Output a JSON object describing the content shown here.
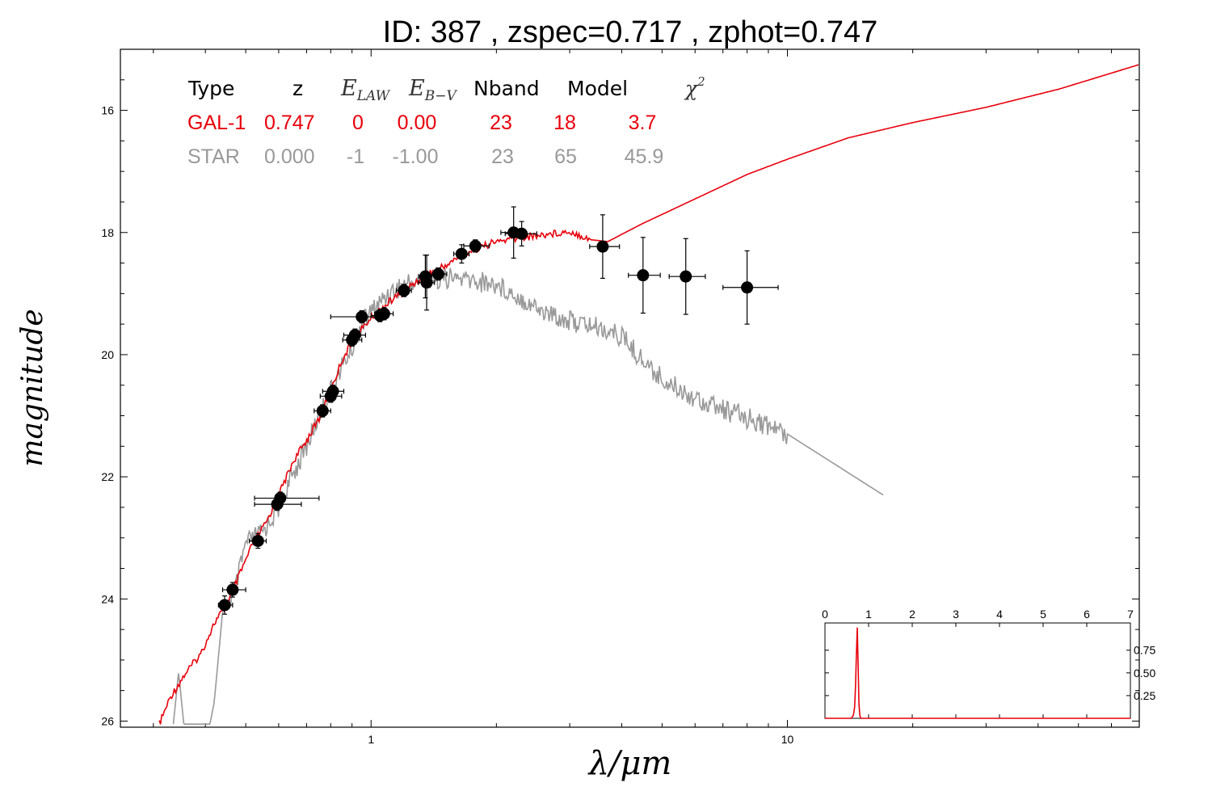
{
  "chart_data": [
    {
      "type": "scatter",
      "title": "ID:  387   , zspec=0.717 , zphot=0.747",
      "xlabel": "λ/μm",
      "ylabel": "magnitude",
      "xscale": "log",
      "xlim": [
        0.25,
        70
      ],
      "ylim": [
        26.1,
        15.0
      ],
      "y_inverted": true,
      "x_ticks": [
        {
          "value": 1,
          "label": "1"
        },
        {
          "value": 10,
          "label": "10"
        }
      ],
      "y_ticks": [
        {
          "value": 16,
          "label": "16"
        },
        {
          "value": 18,
          "label": "18"
        },
        {
          "value": 20,
          "label": "20"
        },
        {
          "value": 22,
          "label": "22"
        },
        {
          "value": 24,
          "label": "24"
        },
        {
          "value": 26,
          "label": "26"
        }
      ],
      "colors": {
        "galaxy": "#e8000b",
        "star": "#999999",
        "points": "#000000"
      },
      "fit_table": {
        "headers": [
          "Type",
          "z",
          "E_LAW",
          "E_B-V",
          "Nband",
          "Model",
          "χ²"
        ],
        "rows": [
          {
            "type": "GAL-1",
            "z": "0.747",
            "elaw": "0",
            "ebv": "0.00",
            "nband": "23",
            "model": "18",
            "chi2": "3.7",
            "color": "#e8000b"
          },
          {
            "type": "STAR",
            "z": "0.000",
            "elaw": "-1",
            "ebv": "-1.00",
            "nband": "23",
            "model": "65",
            "chi2": "45.9",
            "color": "#999999"
          }
        ]
      },
      "points": [
        {
          "x": 0.445,
          "y": 24.1,
          "xerr": [
            0.43,
            0.465
          ],
          "yerr": 0.15
        },
        {
          "x": 0.465,
          "y": 23.85,
          "xerr": [
            0.44,
            0.5
          ],
          "yerr": 0.12
        },
        {
          "x": 0.535,
          "y": 23.05,
          "xerr": [
            0.51,
            0.56
          ],
          "yerr": 0.12
        },
        {
          "x": 0.595,
          "y": 22.45,
          "xerr": [
            0.525,
            0.68
          ],
          "yerr": 0.1
        },
        {
          "x": 0.605,
          "y": 22.35,
          "xerr": [
            0.525,
            0.75
          ],
          "yerr": 0.1
        },
        {
          "x": 0.765,
          "y": 20.92,
          "xerr": [
            0.73,
            0.8
          ],
          "yerr": 0.1
        },
        {
          "x": 0.8,
          "y": 20.68,
          "xerr": [
            0.755,
            0.85
          ],
          "yerr": 0.1
        },
        {
          "x": 0.81,
          "y": 20.6,
          "xerr": [
            0.765,
            0.86
          ],
          "yerr": 0.1
        },
        {
          "x": 0.9,
          "y": 19.76,
          "xerr": [
            0.855,
            0.95
          ],
          "yerr": 0.1
        },
        {
          "x": 0.915,
          "y": 19.68,
          "xerr": [
            0.86,
            0.97
          ],
          "yerr": 0.1
        },
        {
          "x": 0.95,
          "y": 19.38,
          "xerr": [
            0.8,
            1.08
          ],
          "yerr": 0.1
        },
        {
          "x": 1.05,
          "y": 19.36,
          "xerr": [
            1.0,
            1.1
          ],
          "yerr": 0.1
        },
        {
          "x": 1.075,
          "y": 19.33,
          "xerr": [
            1.02,
            1.13
          ],
          "yerr": 0.1
        },
        {
          "x": 1.2,
          "y": 18.95,
          "xerr": [
            1.15,
            1.25
          ],
          "yerr": 0.1
        },
        {
          "x": 1.35,
          "y": 18.72,
          "xerr": [
            1.3,
            1.4
          ],
          "yerr": 0.35
        },
        {
          "x": 1.36,
          "y": 18.82,
          "xerr": [
            1.3,
            1.42
          ],
          "yerr": 0.45
        },
        {
          "x": 1.45,
          "y": 18.68,
          "xerr": [
            1.38,
            1.52
          ],
          "yerr": 0.1
        },
        {
          "x": 1.65,
          "y": 18.35,
          "xerr": [
            1.58,
            1.72
          ],
          "yerr": 0.15
        },
        {
          "x": 1.78,
          "y": 18.22,
          "xerr": [
            1.67,
            1.92
          ],
          "yerr": 0.1
        },
        {
          "x": 2.2,
          "y": 18.0,
          "xerr": [
            2.05,
            2.32
          ],
          "yerr": 0.42
        },
        {
          "x": 2.3,
          "y": 18.02,
          "xerr": [
            2.1,
            2.5
          ],
          "yerr": 0.2
        },
        {
          "x": 3.6,
          "y": 18.23,
          "xerr": [
            3.35,
            3.95
          ],
          "yerr": 0.52
        },
        {
          "x": 4.5,
          "y": 18.7,
          "xerr": [
            4.15,
            4.95
          ],
          "yerr": 0.62
        },
        {
          "x": 5.7,
          "y": 18.72,
          "xerr": [
            5.2,
            6.35
          ],
          "yerr": 0.62
        },
        {
          "x": 8.0,
          "y": 18.9,
          "xerr": [
            7.0,
            9.5
          ],
          "yerr": 0.6
        }
      ],
      "galaxy_model": [
        [
          0.31,
          26.05
        ],
        [
          0.33,
          25.6
        ],
        [
          0.36,
          25.2
        ],
        [
          0.39,
          24.9
        ],
        [
          0.42,
          24.4
        ],
        [
          0.45,
          24.1
        ],
        [
          0.48,
          23.65
        ],
        [
          0.52,
          23.1
        ],
        [
          0.56,
          22.75
        ],
        [
          0.6,
          22.3
        ],
        [
          0.65,
          21.75
        ],
        [
          0.7,
          21.4
        ],
        [
          0.75,
          21.05
        ],
        [
          0.8,
          20.6
        ],
        [
          0.85,
          20.1
        ],
        [
          0.9,
          19.8
        ],
        [
          0.95,
          19.58
        ],
        [
          1.0,
          19.4
        ],
        [
          1.1,
          19.15
        ],
        [
          1.2,
          18.95
        ],
        [
          1.35,
          18.7
        ],
        [
          1.5,
          18.55
        ],
        [
          1.7,
          18.32
        ],
        [
          2.0,
          18.15
        ],
        [
          2.5,
          18.05
        ],
        [
          3.0,
          17.98
        ],
        [
          3.4,
          18.12
        ],
        [
          3.7,
          18.15
        ],
        [
          4.5,
          17.85
        ],
        [
          6.0,
          17.45
        ],
        [
          8.0,
          17.05
        ],
        [
          10.0,
          16.8
        ],
        [
          14.0,
          16.45
        ],
        [
          20.0,
          16.2
        ],
        [
          30.0,
          15.95
        ],
        [
          45.0,
          15.65
        ],
        [
          70.0,
          15.25
        ]
      ],
      "star_model": [
        [
          0.335,
          26.05
        ],
        [
          0.345,
          25.2
        ],
        [
          0.355,
          26.05
        ],
        [
          0.38,
          26.05
        ],
        [
          0.41,
          26.05
        ],
        [
          0.42,
          25.7
        ],
        [
          0.44,
          24.2
        ],
        [
          0.47,
          23.9
        ],
        [
          0.5,
          23.1
        ],
        [
          0.55,
          22.9
        ],
        [
          0.6,
          22.5
        ],
        [
          0.65,
          21.95
        ],
        [
          0.7,
          21.5
        ],
        [
          0.75,
          21.0
        ],
        [
          0.8,
          20.6
        ],
        [
          0.85,
          20.2
        ],
        [
          0.9,
          19.9
        ],
        [
          0.95,
          19.5
        ],
        [
          1.0,
          19.3
        ],
        [
          1.1,
          19.0
        ],
        [
          1.2,
          18.85
        ],
        [
          1.4,
          18.75
        ],
        [
          1.6,
          18.75
        ],
        [
          1.8,
          18.8
        ],
        [
          2.0,
          18.85
        ],
        [
          2.2,
          19.0
        ],
        [
          2.6,
          19.3
        ],
        [
          3.0,
          19.45
        ],
        [
          3.5,
          19.55
        ],
        [
          4.0,
          19.7
        ],
        [
          4.5,
          20.1
        ],
        [
          5.0,
          20.4
        ],
        [
          6.0,
          20.7
        ],
        [
          7.0,
          20.9
        ],
        [
          8.5,
          21.1
        ],
        [
          10.0,
          21.3
        ],
        [
          17.0,
          22.3
        ]
      ]
    },
    {
      "type": "line",
      "title": "",
      "xlim": [
        0,
        7
      ],
      "ylim": [
        0,
        1.05
      ],
      "x_ticks": [
        {
          "value": 0,
          "label": "0"
        },
        {
          "value": 1,
          "label": "1"
        },
        {
          "value": 2,
          "label": "2"
        },
        {
          "value": 3,
          "label": "3"
        },
        {
          "value": 4,
          "label": "4"
        },
        {
          "value": 5,
          "label": "5"
        },
        {
          "value": 6,
          "label": "6"
        },
        {
          "value": 7,
          "label": "7"
        }
      ],
      "y_ticks": [
        {
          "value": 0.25,
          "label": "0.25"
        },
        {
          "value": 0.5,
          "label": "0.50"
        },
        {
          "value": 0.75,
          "label": "0.75"
        }
      ],
      "series": [
        {
          "color": "#e8000b",
          "x": [
            0.0,
            0.6,
            0.65,
            0.68,
            0.7,
            0.72,
            0.74,
            0.76,
            0.78,
            0.8,
            0.82,
            0.86,
            7.0
          ],
          "y": [
            0.0,
            0.0,
            0.03,
            0.12,
            0.35,
            0.7,
            1.0,
            0.6,
            0.15,
            0.03,
            0.0,
            0.0,
            0.0
          ]
        }
      ]
    }
  ]
}
